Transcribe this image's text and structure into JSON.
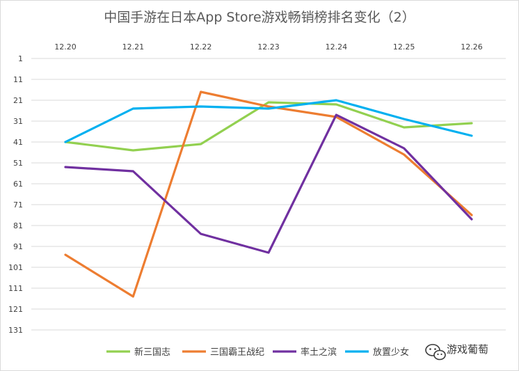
{
  "chart_data": {
    "type": "line",
    "title": "中国手游在日本App Store游戏畅销榜排名变化（2）",
    "categories": [
      "12.20",
      "12.21",
      "12.22",
      "12.23",
      "12.24",
      "12.25",
      "12.26"
    ],
    "y_ticks": [
      "1",
      "11",
      "21",
      "31",
      "41",
      "51",
      "61",
      "71",
      "81",
      "91",
      "101",
      "111",
      "121",
      "131"
    ],
    "ylim": [
      1,
      131
    ],
    "y_inverted": true,
    "x_axis_position": "top",
    "grid": true,
    "legend_position": "bottom",
    "series": [
      {
        "name": "新三国志",
        "color": "#92d050",
        "values": [
          41,
          45,
          42,
          22,
          23,
          34,
          32
        ]
      },
      {
        "name": "三国霸王战纪",
        "color": "#ed7d31",
        "values": [
          95,
          115,
          17,
          24,
          29,
          47,
          76
        ]
      },
      {
        "name": "率土之滨",
        "color": "#7030a0",
        "values": [
          53,
          55,
          85,
          94,
          28,
          44,
          78
        ]
      },
      {
        "name": "放置少女",
        "color": "#00b0f0",
        "values": [
          41,
          25,
          24,
          25,
          21,
          30,
          38
        ]
      }
    ]
  },
  "watermark": {
    "text": "游戏葡萄"
  }
}
